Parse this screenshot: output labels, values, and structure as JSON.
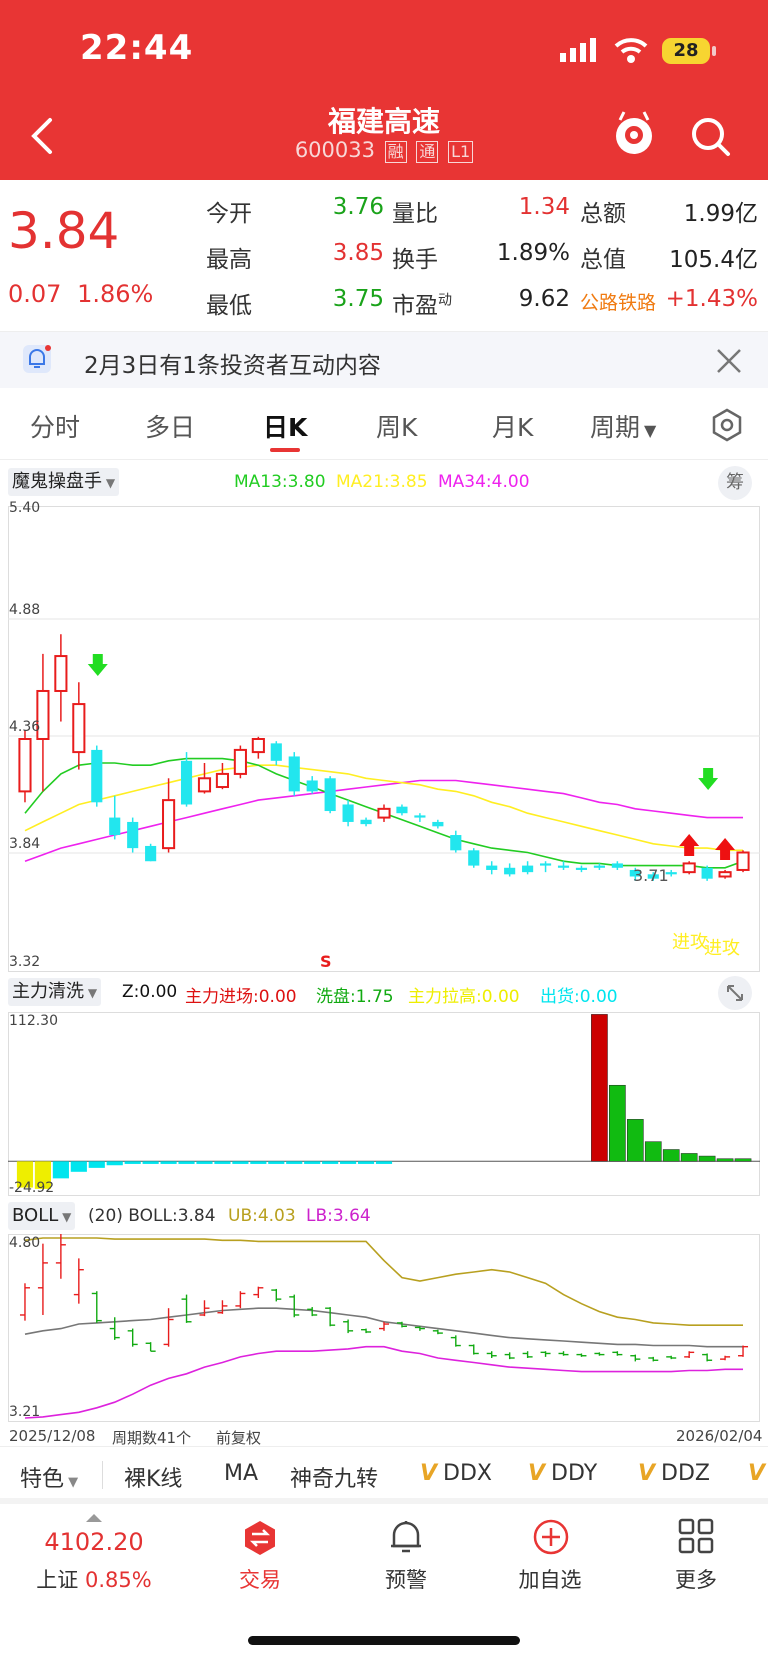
{
  "status_bar": {
    "time": "22:44",
    "battery": "28"
  },
  "header": {
    "title": "福建高速",
    "code": "600033",
    "tags": [
      "融",
      "通",
      "L1"
    ]
  },
  "quote": {
    "price": "3.84",
    "change": "0.07",
    "change_pct": "1.86%",
    "rows": [
      {
        "l1": "今开",
        "v1": "3.76",
        "l2": "量比",
        "v2": "1.34",
        "l3": "总额",
        "v3": "1.99亿"
      },
      {
        "l1": "最高",
        "v1": "3.85",
        "l2": "换手",
        "v2": "1.89%",
        "l3": "总值",
        "v3": "105.4亿"
      },
      {
        "l1": "最低",
        "v1": "3.75",
        "l2": "市盈",
        "l2_sup": "动",
        "v2": "9.62",
        "l3": "公路铁路",
        "v3": "+1.43%"
      }
    ]
  },
  "notice": {
    "text": "2月3日有1条投资者互动内容"
  },
  "tabs": [
    "分时",
    "多日",
    "日K",
    "周K",
    "月K",
    "周期"
  ],
  "main_panel": {
    "indicator": "魔鬼操盘手",
    "ma": [
      {
        "label": "MA13:3.80",
        "color": "#22cc22"
      },
      {
        "label": "MA21:3.85",
        "color": "#ffee22"
      },
      {
        "label": "MA34:4.00",
        "color": "#ee22ee"
      }
    ],
    "chip_button": "筹",
    "y_labels": [
      "5.40",
      "4.88",
      "4.36",
      "3.84",
      "3.32"
    ],
    "min_label": "3.71",
    "s_marker": "S",
    "attack_labels": [
      "进攻",
      "进攻"
    ]
  },
  "sub_panel": {
    "indicator": "主力清洗",
    "values": [
      {
        "label": "Z:0.00",
        "color": "#111111"
      },
      {
        "label": "主力进场:0.00",
        "color": "#dd1111"
      },
      {
        "label": "洗盘:1.75",
        "color": "#11aa11"
      },
      {
        "label": "主力拉高:0.00",
        "color": "#eeee00"
      },
      {
        "label": "出货:0.00",
        "color": "#00e5ee"
      }
    ],
    "y_top": "112.30",
    "y_bottom": "-24.92"
  },
  "boll_panel": {
    "indicator": "BOLL",
    "values": [
      {
        "label": "(20) BOLL:3.84",
        "color": "#333333"
      },
      {
        "label": "UB:4.03",
        "color": "#b8a020"
      },
      {
        "label": "LB:3.64",
        "color": "#cc22cc"
      }
    ],
    "y_top": "4.80",
    "y_bottom": "3.21"
  },
  "footer_info": {
    "start_date": "2025/12/08",
    "period_count": "周期数41个",
    "adjust": "前复权",
    "end_date": "2026/02/04"
  },
  "features": [
    "特色",
    "裸K线",
    "MA",
    "神奇九转",
    "DDX",
    "DDY",
    "DDZ"
  ],
  "nav": {
    "index_value": "4102.20",
    "index_name": "上证",
    "index_pct": "0.85%",
    "items": [
      "交易",
      "预警",
      "加自选",
      "更多"
    ]
  },
  "chart_data": {
    "type": "candlestick",
    "candles": [
      {
        "o": 4.12,
        "c": 4.36,
        "h": 4.4,
        "l": 4.07,
        "dir": "up"
      },
      {
        "o": 4.36,
        "c": 4.58,
        "h": 4.75,
        "l": 4.12,
        "dir": "up"
      },
      {
        "o": 4.58,
        "c": 4.74,
        "h": 4.84,
        "l": 4.44,
        "dir": "up"
      },
      {
        "o": 4.3,
        "c": 4.52,
        "h": 4.62,
        "l": 4.22,
        "dir": "up"
      },
      {
        "o": 4.31,
        "c": 4.07,
        "h": 4.33,
        "l": 4.05,
        "dir": "down"
      },
      {
        "o": 4.0,
        "c": 3.92,
        "h": 4.1,
        "l": 3.9,
        "dir": "down"
      },
      {
        "o": 3.98,
        "c": 3.86,
        "h": 4.0,
        "l": 3.84,
        "dir": "down"
      },
      {
        "o": 3.87,
        "c": 3.8,
        "h": 3.88,
        "l": 3.8,
        "dir": "down"
      },
      {
        "o": 3.86,
        "c": 4.08,
        "h": 4.18,
        "l": 3.84,
        "dir": "up"
      },
      {
        "o": 4.26,
        "c": 4.06,
        "h": 4.3,
        "l": 4.05,
        "dir": "down"
      },
      {
        "o": 4.12,
        "c": 4.18,
        "h": 4.25,
        "l": 4.11,
        "dir": "up"
      },
      {
        "o": 4.14,
        "c": 4.2,
        "h": 4.25,
        "l": 4.13,
        "dir": "up"
      },
      {
        "o": 4.2,
        "c": 4.31,
        "h": 4.33,
        "l": 4.18,
        "dir": "up"
      },
      {
        "o": 4.3,
        "c": 4.36,
        "h": 4.37,
        "l": 4.27,
        "dir": "up"
      },
      {
        "o": 4.34,
        "c": 4.26,
        "h": 4.35,
        "l": 4.24,
        "dir": "down"
      },
      {
        "o": 4.28,
        "c": 4.12,
        "h": 4.3,
        "l": 4.1,
        "dir": "down"
      },
      {
        "o": 4.17,
        "c": 4.12,
        "h": 4.19,
        "l": 4.11,
        "dir": "down"
      },
      {
        "o": 4.18,
        "c": 4.03,
        "h": 4.19,
        "l": 4.02,
        "dir": "down"
      },
      {
        "o": 4.06,
        "c": 3.98,
        "h": 4.08,
        "l": 3.96,
        "dir": "down"
      },
      {
        "o": 3.99,
        "c": 3.97,
        "h": 4.0,
        "l": 3.96,
        "dir": "down"
      },
      {
        "o": 4.0,
        "c": 4.04,
        "h": 4.06,
        "l": 3.98,
        "dir": "up"
      },
      {
        "o": 4.05,
        "c": 4.02,
        "h": 4.06,
        "l": 4.01,
        "dir": "down"
      },
      {
        "o": 4.01,
        "c": 4.0,
        "h": 4.02,
        "l": 3.98,
        "dir": "down"
      },
      {
        "o": 3.98,
        "c": 3.96,
        "h": 3.99,
        "l": 3.95,
        "dir": "down"
      },
      {
        "o": 3.92,
        "c": 3.85,
        "h": 3.94,
        "l": 3.84,
        "dir": "down"
      },
      {
        "o": 3.85,
        "c": 3.78,
        "h": 3.86,
        "l": 3.77,
        "dir": "down"
      },
      {
        "o": 3.78,
        "c": 3.76,
        "h": 3.8,
        "l": 3.74,
        "dir": "down"
      },
      {
        "o": 3.77,
        "c": 3.74,
        "h": 3.79,
        "l": 3.73,
        "dir": "down"
      },
      {
        "o": 3.78,
        "c": 3.75,
        "h": 3.8,
        "l": 3.74,
        "dir": "down"
      },
      {
        "o": 3.79,
        "c": 3.78,
        "h": 3.8,
        "l": 3.75,
        "dir": "down"
      },
      {
        "o": 3.78,
        "c": 3.77,
        "h": 3.8,
        "l": 3.76,
        "dir": "down"
      },
      {
        "o": 3.77,
        "c": 3.76,
        "h": 3.78,
        "l": 3.75,
        "dir": "down"
      },
      {
        "o": 3.78,
        "c": 3.77,
        "h": 3.79,
        "l": 3.76,
        "dir": "down"
      },
      {
        "o": 3.79,
        "c": 3.77,
        "h": 3.8,
        "l": 3.76,
        "dir": "down"
      },
      {
        "o": 3.76,
        "c": 3.73,
        "h": 3.77,
        "l": 3.71,
        "dir": "down"
      },
      {
        "o": 3.74,
        "c": 3.72,
        "h": 3.75,
        "l": 3.71,
        "dir": "down"
      },
      {
        "o": 3.75,
        "c": 3.74,
        "h": 3.76,
        "l": 3.73,
        "dir": "down"
      },
      {
        "o": 3.75,
        "c": 3.79,
        "h": 3.8,
        "l": 3.74,
        "dir": "up"
      },
      {
        "o": 3.77,
        "c": 3.72,
        "h": 3.78,
        "l": 3.71,
        "dir": "down"
      },
      {
        "o": 3.73,
        "c": 3.75,
        "h": 3.76,
        "l": 3.72,
        "dir": "up"
      },
      {
        "o": 3.76,
        "c": 3.84,
        "h": 3.85,
        "l": 3.75,
        "dir": "up"
      }
    ],
    "ma13": [
      4.02,
      4.12,
      4.2,
      4.24,
      4.25,
      4.25,
      4.24,
      4.24,
      4.26,
      4.27,
      4.27,
      4.27,
      4.26,
      4.24,
      4.2,
      4.17,
      4.14,
      4.11,
      4.08,
      4.05,
      4.02,
      3.99,
      3.96,
      3.93,
      3.9,
      3.88,
      3.86,
      3.85,
      3.84,
      3.82,
      3.8,
      3.79,
      3.79,
      3.78,
      3.78,
      3.78,
      3.78,
      3.78,
      3.77,
      3.77,
      3.8
    ],
    "ma21": [
      3.94,
      3.98,
      4.02,
      4.06,
      4.08,
      4.1,
      4.12,
      4.14,
      4.16,
      4.18,
      4.2,
      4.22,
      4.23,
      4.24,
      4.24,
      4.23,
      4.22,
      4.21,
      4.2,
      4.18,
      4.17,
      4.16,
      4.15,
      4.13,
      4.12,
      4.1,
      4.07,
      4.05,
      4.02,
      4.0,
      3.98,
      3.96,
      3.94,
      3.92,
      3.9,
      3.88,
      3.87,
      3.86,
      3.86,
      3.85,
      3.85
    ],
    "ma34": [
      3.8,
      3.83,
      3.86,
      3.88,
      3.9,
      3.92,
      3.94,
      3.96,
      3.98,
      4.0,
      4.02,
      4.04,
      4.06,
      4.08,
      4.09,
      4.1,
      4.11,
      4.12,
      4.13,
      4.14,
      4.15,
      4.16,
      4.17,
      4.17,
      4.17,
      4.16,
      4.15,
      4.14,
      4.13,
      4.12,
      4.11,
      4.09,
      4.07,
      4.06,
      4.04,
      4.03,
      4.02,
      4.01,
      4.0,
      4.0,
      4.0
    ],
    "sub_bars": [
      {
        "v": -20,
        "c": "#eeee00"
      },
      {
        "v": -21,
        "c": "#eeee00"
      },
      {
        "v": -13,
        "c": "#00e5ee"
      },
      {
        "v": -8,
        "c": "#00e5ee"
      },
      {
        "v": -5,
        "c": "#00e5ee"
      },
      {
        "v": -3,
        "c": "#00e5ee"
      },
      {
        "v": -2,
        "c": "#00e5ee"
      },
      {
        "v": -2,
        "c": "#00e5ee"
      },
      {
        "v": -2,
        "c": "#00e5ee"
      },
      {
        "v": -2,
        "c": "#00e5ee"
      },
      {
        "v": -2,
        "c": "#00e5ee"
      },
      {
        "v": -2,
        "c": "#00e5ee"
      },
      {
        "v": -2,
        "c": "#00e5ee"
      },
      {
        "v": -2,
        "c": "#00e5ee"
      },
      {
        "v": -2,
        "c": "#00e5ee"
      },
      {
        "v": -2,
        "c": "#00e5ee"
      },
      {
        "v": -2,
        "c": "#00e5ee"
      },
      {
        "v": -2,
        "c": "#00e5ee"
      },
      {
        "v": -2,
        "c": "#00e5ee"
      },
      {
        "v": -2,
        "c": "#00e5ee"
      },
      {
        "v": -2,
        "c": "#00e5ee"
      },
      {
        "v": 0,
        "c": "#444"
      },
      {
        "v": 0,
        "c": "#444"
      },
      {
        "v": 0,
        "c": "#444"
      },
      {
        "v": 0,
        "c": "#444"
      },
      {
        "v": 0,
        "c": "#444"
      },
      {
        "v": 0,
        "c": "#444"
      },
      {
        "v": 0,
        "c": "#444"
      },
      {
        "v": 0,
        "c": "#444"
      },
      {
        "v": 0,
        "c": "#444"
      },
      {
        "v": 0,
        "c": "#444"
      },
      {
        "v": 0,
        "c": "#444"
      },
      {
        "v": 112,
        "c": "#cc0000"
      },
      {
        "v": 58,
        "c": "#11bb11"
      },
      {
        "v": 32,
        "c": "#11bb11"
      },
      {
        "v": 15,
        "c": "#11bb11"
      },
      {
        "v": 9,
        "c": "#11bb11"
      },
      {
        "v": 6,
        "c": "#11bb11"
      },
      {
        "v": 4,
        "c": "#11bb11"
      },
      {
        "v": 2,
        "c": "#11bb11"
      },
      {
        "v": 2,
        "c": "#11bb11"
      }
    ],
    "boll_ub": [
      4.78,
      4.8,
      4.8,
      4.8,
      4.8,
      4.79,
      4.79,
      4.79,
      4.79,
      4.79,
      4.79,
      4.78,
      4.78,
      4.77,
      4.77,
      4.77,
      4.77,
      4.77,
      4.77,
      4.77,
      4.6,
      4.45,
      4.42,
      4.45,
      4.48,
      4.5,
      4.52,
      4.5,
      4.45,
      4.4,
      4.3,
      4.22,
      4.15,
      4.1,
      4.08,
      4.05,
      4.04,
      4.03,
      4.03,
      4.03,
      4.03
    ],
    "boll_mid": [
      3.95,
      3.98,
      4.0,
      4.04,
      4.05,
      4.06,
      4.07,
      4.08,
      4.1,
      4.12,
      4.14,
      4.16,
      4.17,
      4.18,
      4.18,
      4.17,
      4.16,
      4.14,
      4.12,
      4.1,
      4.06,
      4.04,
      4.02,
      4.0,
      3.98,
      3.96,
      3.94,
      3.92,
      3.91,
      3.9,
      3.89,
      3.88,
      3.87,
      3.86,
      3.86,
      3.85,
      3.85,
      3.85,
      3.84,
      3.84,
      3.84
    ],
    "boll_lb": [
      3.21,
      3.22,
      3.24,
      3.26,
      3.3,
      3.35,
      3.42,
      3.5,
      3.56,
      3.6,
      3.66,
      3.7,
      3.75,
      3.78,
      3.8,
      3.8,
      3.8,
      3.81,
      3.82,
      3.84,
      3.84,
      3.8,
      3.78,
      3.74,
      3.72,
      3.7,
      3.68,
      3.66,
      3.65,
      3.64,
      3.63,
      3.62,
      3.62,
      3.62,
      3.62,
      3.62,
      3.62,
      3.63,
      3.63,
      3.64,
      3.64
    ],
    "ylim_main": [
      3.32,
      5.4
    ],
    "ylim_sub": [
      -24.92,
      112.3
    ],
    "ylim_boll": [
      3.21,
      4.8
    ],
    "up_color": "#e81c1c",
    "down_color": "#22e6ee"
  }
}
